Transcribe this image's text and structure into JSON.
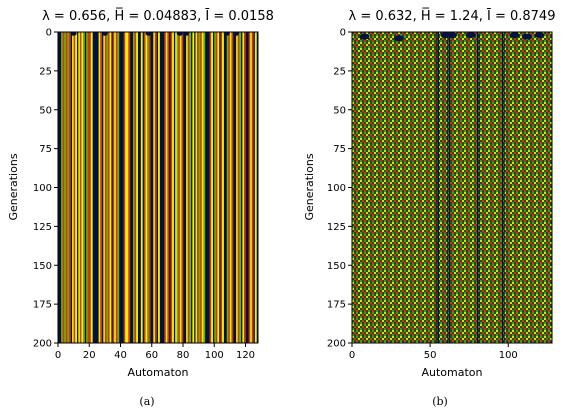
{
  "figure": {
    "captions": [
      "(a)",
      "(b)"
    ]
  },
  "chart_data": [
    {
      "type": "heatmap",
      "panel": "a",
      "title": "λ = 0.656, H̅ = 0.04883, Ī = 0.0158",
      "title_parts": {
        "lambda": "0.656",
        "H": "0.04883",
        "I": "0.0158"
      },
      "xlabel": "Automaton",
      "ylabel": "Generations",
      "xlim": [
        0,
        128
      ],
      "ylim": [
        200,
        0
      ],
      "xticks": [
        0,
        20,
        40,
        60,
        80,
        100,
        120
      ],
      "yticks": [
        0,
        25,
        50,
        75,
        100,
        125,
        150,
        175,
        200
      ],
      "colors": {
        "background": "#001244",
        "stripe_yellow": "#f2f200",
        "stripe_red": "#c83a1a",
        "stripe_green": "#6db400"
      },
      "pattern": "vertical-stripes",
      "column_states": [
        0,
        0,
        3,
        2,
        3,
        2,
        3,
        2,
        0,
        1,
        2,
        1,
        0,
        1,
        2,
        1,
        3,
        0,
        3,
        2,
        2,
        1,
        0,
        0,
        0,
        0,
        1,
        2,
        0,
        1,
        2,
        3,
        2,
        1,
        0,
        2,
        1,
        2,
        3,
        0,
        0,
        0,
        2,
        1,
        1,
        2,
        0,
        0,
        3,
        2,
        1,
        0,
        0,
        1,
        0,
        2,
        1,
        3,
        2,
        0,
        0,
        1,
        2,
        0,
        1,
        0,
        0,
        0,
        2,
        1,
        2,
        0,
        2,
        1,
        0,
        1,
        3,
        2,
        1,
        2,
        0,
        0,
        1,
        2,
        3,
        0,
        1,
        0,
        1,
        2,
        3,
        2,
        1,
        3,
        0,
        0,
        0,
        2,
        1,
        0,
        3,
        2,
        1,
        0,
        2,
        1,
        0,
        0,
        3,
        2,
        1,
        2,
        0,
        0,
        1,
        2,
        3,
        0,
        1,
        2,
        0,
        0,
        2,
        1,
        2,
        0,
        1,
        0
      ]
    },
    {
      "type": "heatmap",
      "panel": "b",
      "title": "λ = 0.632, H̅ = 1.24, Ī = 0.8749",
      "title_parts": {
        "lambda": "0.632",
        "H": "1.24",
        "I": "0.8749"
      },
      "xlabel": "Automaton",
      "ylabel": "Generations",
      "xlim": [
        0,
        128
      ],
      "ylim": [
        200,
        0
      ],
      "xticks": [
        0,
        50,
        100
      ],
      "yticks": [
        0,
        25,
        50,
        75,
        100,
        125,
        150,
        175,
        200
      ],
      "colors": {
        "background": "#2a4a10",
        "checker_yellow": "#d8e400",
        "checker_red": "#c43a1a",
        "checker_green": "#3a9a2a",
        "column_dark": "#001244"
      },
      "pattern": "checkerboard-with-dark-columns",
      "dark_columns": [
        54,
        55,
        61,
        62,
        80,
        81,
        96,
        97
      ]
    }
  ]
}
